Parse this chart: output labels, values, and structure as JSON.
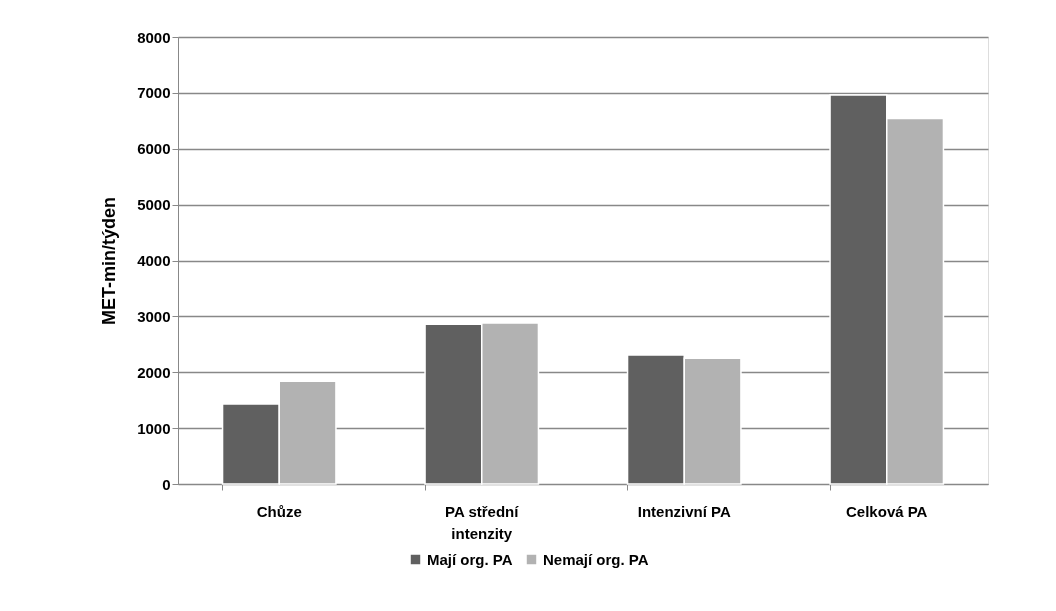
{
  "chart_data": {
    "type": "bar",
    "ylabel": "MET-min/týden",
    "categories": [
      "Chůze",
      "PA střední intenzity",
      "Intenzivní PA",
      "Celková PA"
    ],
    "series": [
      {
        "name": "Mají org. PA",
        "color": "#606060",
        "values": [
          1430,
          2860,
          2310,
          6960
        ]
      },
      {
        "name": "Nemají org. PA",
        "color": "#b2b2b2",
        "values": [
          1840,
          2880,
          2250,
          6540
        ]
      }
    ],
    "ylim": [
      0,
      8000
    ],
    "yticks": [
      0,
      1000,
      2000,
      3000,
      4000,
      5000,
      6000,
      7000,
      8000
    ],
    "grid": "y",
    "legend": "bottom"
  }
}
